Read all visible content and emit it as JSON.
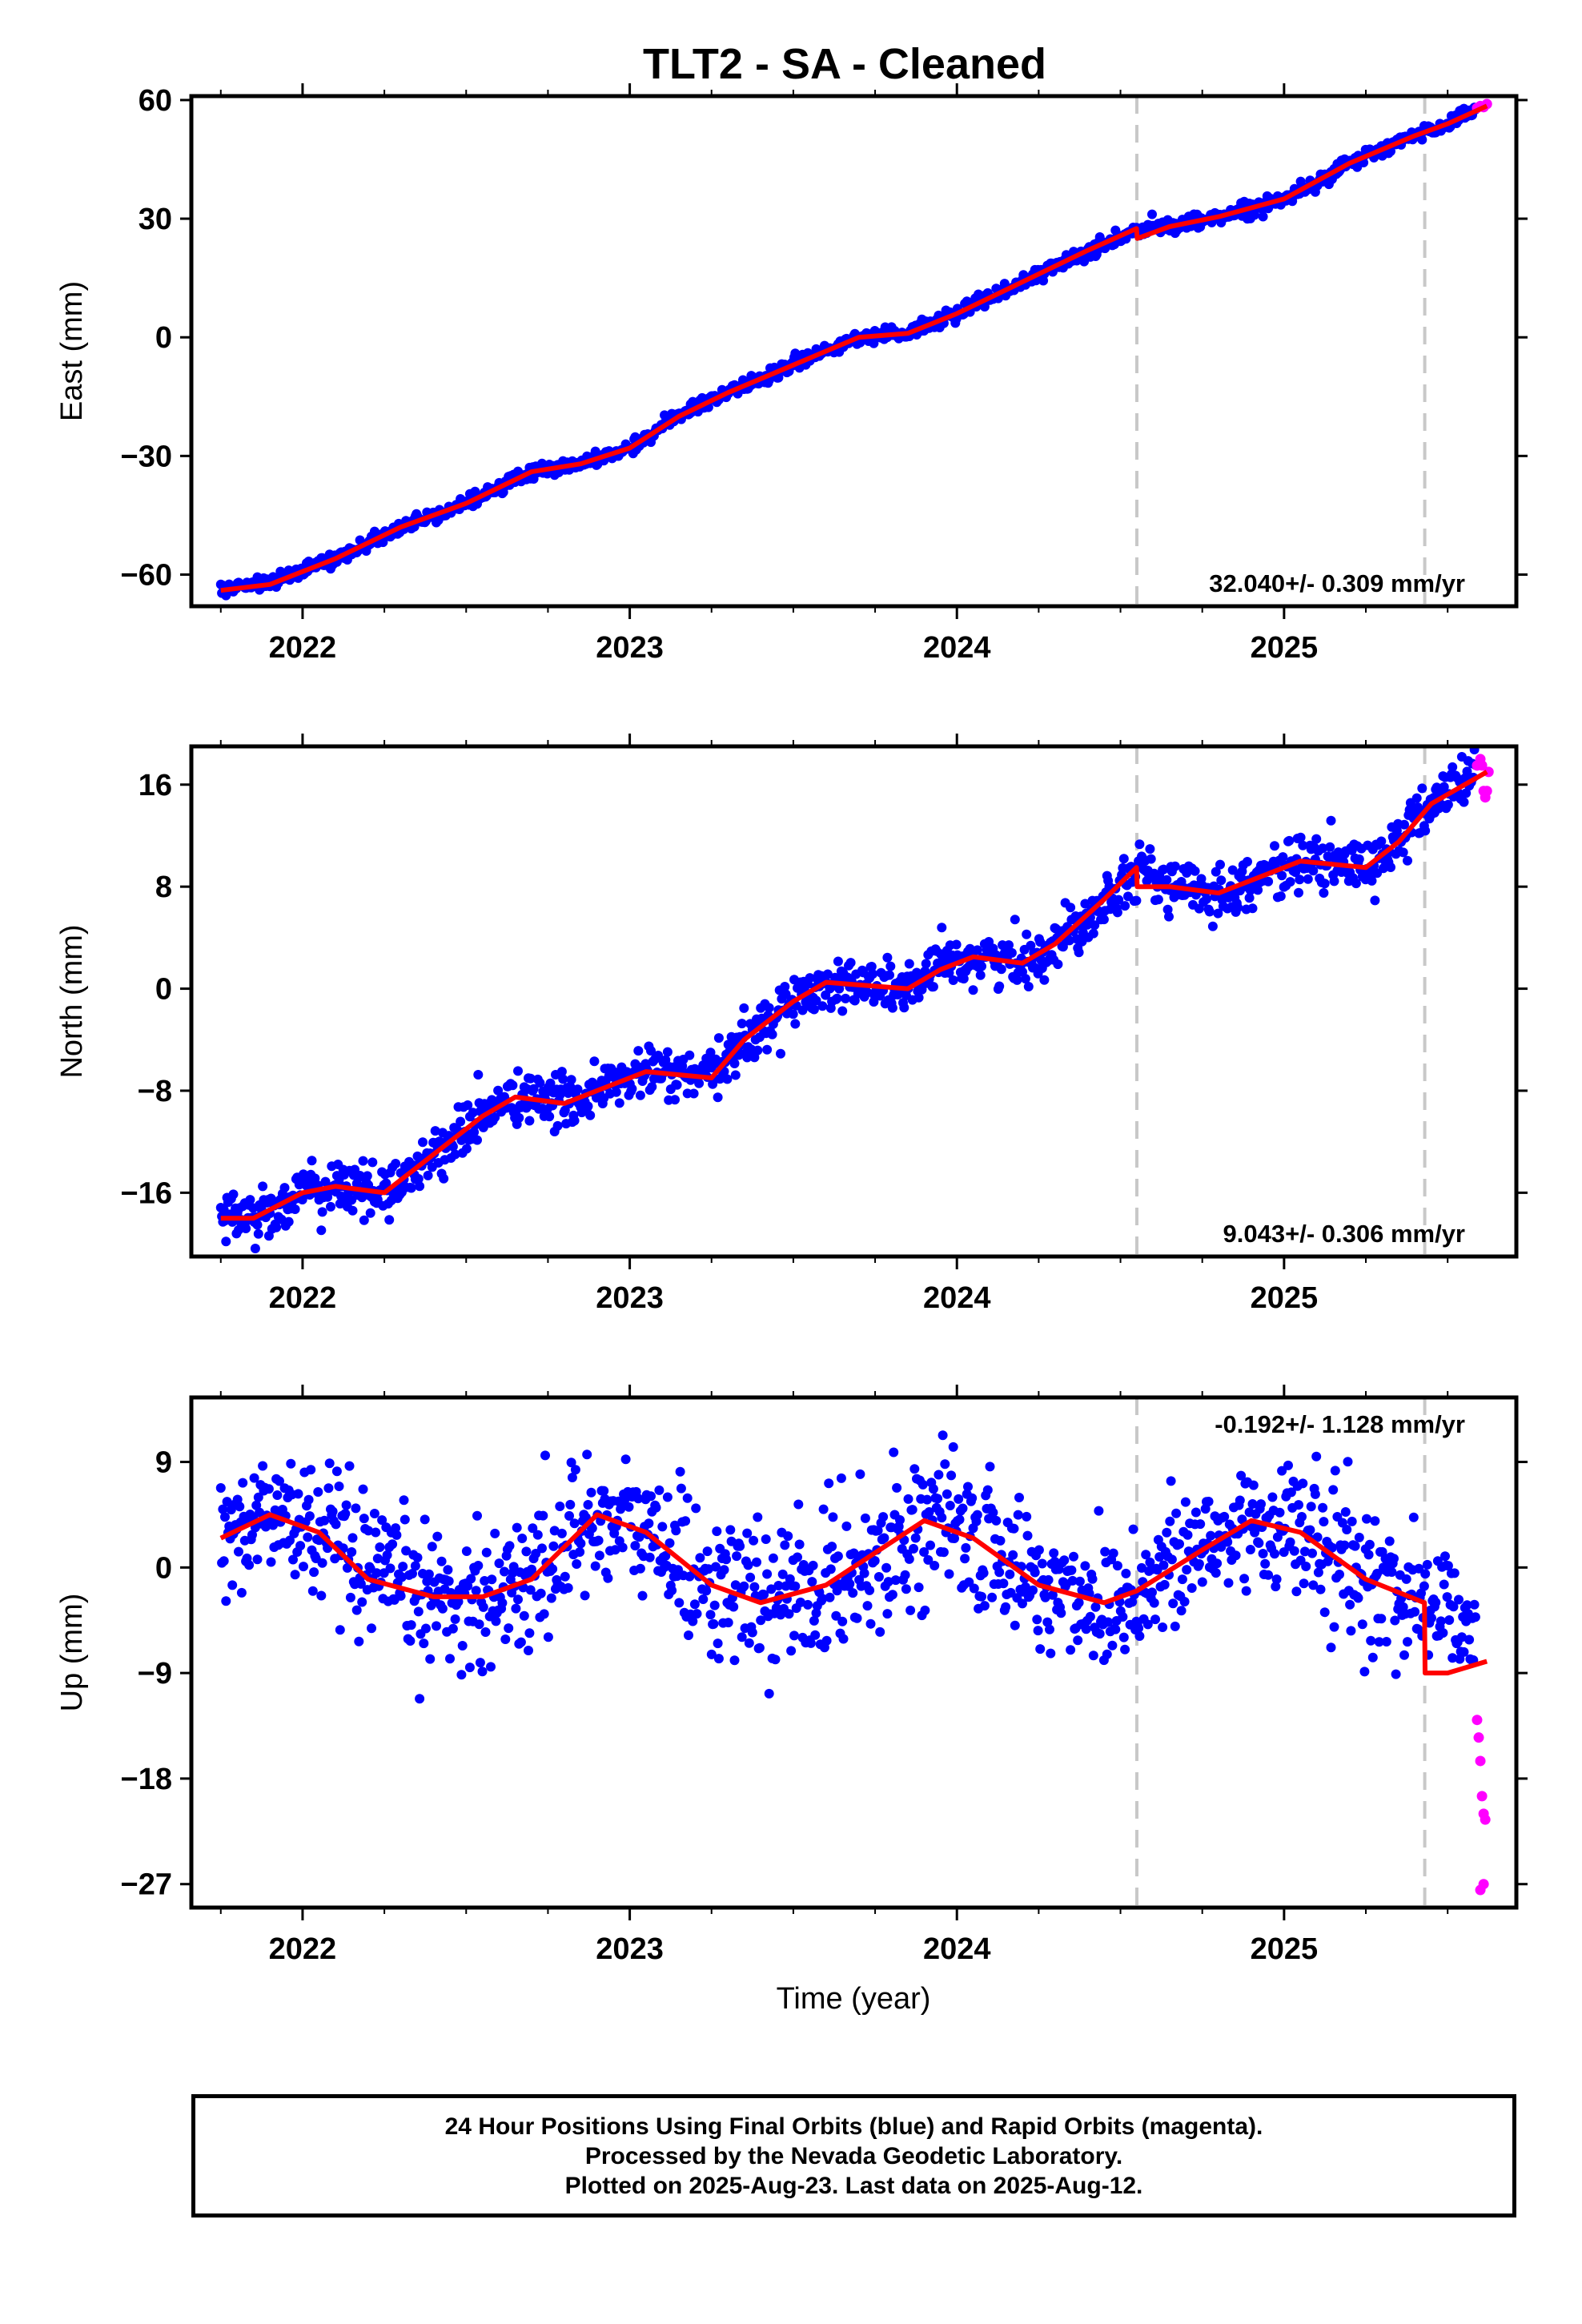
{
  "chart_data": {
    "type": "scatter",
    "title": "TLT2  - SA - Cleaned",
    "xlabel": "Time (year)",
    "xlim": [
      2021.66,
      2025.71
    ],
    "x_ticks": [
      2022,
      2023,
      2024,
      2025
    ],
    "x_tick_labels": [
      "2022",
      "2023",
      "2024",
      "2025"
    ],
    "discontinuities": [
      2024.55,
      2025.43
    ],
    "last_final_orbit_date": 2025.585,
    "panels": [
      {
        "name": "east",
        "ylabel": "East (mm)",
        "ylim": [
          -68,
          61
        ],
        "y_ticks": [
          -60,
          -30,
          0,
          30,
          60
        ],
        "y_tick_labels": [
          "−60",
          "−30",
          "0",
          "30",
          "60"
        ],
        "rate_label": "32.040+/- 0.309 mm/yr",
        "rate_position": "bottom-right",
        "series": {
          "final_orbits": {
            "color": "#0000ff",
            "noise_mm": 0.9,
            "points": [
              [
                2021.75,
                -63.8
              ],
              [
                2021.9,
                -62
              ],
              [
                2022.1,
                -56
              ],
              [
                2022.3,
                -48
              ],
              [
                2022.5,
                -42
              ],
              [
                2022.7,
                -34
              ],
              [
                2022.85,
                -32
              ],
              [
                2023.0,
                -28
              ],
              [
                2023.15,
                -20
              ],
              [
                2023.3,
                -14
              ],
              [
                2023.5,
                -7
              ],
              [
                2023.7,
                0
              ],
              [
                2023.85,
                1
              ],
              [
                2024.0,
                6
              ],
              [
                2024.2,
                14
              ],
              [
                2024.4,
                22
              ],
              [
                2024.55,
                27
              ],
              [
                2024.65,
                28
              ],
              [
                2024.8,
                30.5
              ],
              [
                2025.0,
                35
              ],
              [
                2025.2,
                44
              ],
              [
                2025.4,
                51
              ],
              [
                2025.5,
                54
              ],
              [
                2025.585,
                58
              ]
            ]
          },
          "rapid_orbits": {
            "color": "#ff00ff",
            "points": [
              [
                2025.59,
                58
              ],
              [
                2025.6,
                58.5
              ],
              [
                2025.61,
                58.2
              ],
              [
                2025.62,
                59
              ]
            ]
          },
          "model_fit": {
            "color": "#ff0000",
            "points": [
              [
                2021.75,
                -64
              ],
              [
                2021.9,
                -62.5
              ],
              [
                2022.1,
                -56
              ],
              [
                2022.3,
                -48
              ],
              [
                2022.5,
                -42
              ],
              [
                2022.7,
                -34
              ],
              [
                2022.85,
                -32
              ],
              [
                2023.0,
                -28
              ],
              [
                2023.15,
                -20
              ],
              [
                2023.3,
                -14
              ],
              [
                2023.5,
                -7
              ],
              [
                2023.7,
                0
              ],
              [
                2023.85,
                1
              ],
              [
                2024.0,
                6
              ],
              [
                2024.2,
                14
              ],
              [
                2024.4,
                22
              ],
              [
                2024.549,
                27.5
              ],
              [
                2024.551,
                25
              ],
              [
                2024.65,
                28
              ],
              [
                2024.8,
                30.5
              ],
              [
                2025.0,
                35
              ],
              [
                2025.2,
                44
              ],
              [
                2025.4,
                51
              ],
              [
                2025.5,
                54
              ],
              [
                2025.62,
                58.5
              ]
            ]
          }
        }
      },
      {
        "name": "north",
        "ylabel": "North (mm)",
        "ylim": [
          -21,
          19
        ],
        "y_ticks": [
          -16,
          -8,
          0,
          8,
          16
        ],
        "y_tick_labels": [
          "−16",
          "−8",
          "0",
          "8",
          "16"
        ],
        "rate_label": "9.043+/- 0.306 mm/yr",
        "rate_position": "bottom-right",
        "series": {
          "final_orbits": {
            "color": "#0000ff",
            "noise_mm": 1.0,
            "points": [
              [
                2021.75,
                -17.5
              ],
              [
                2021.85,
                -18
              ],
              [
                2022.0,
                -16
              ],
              [
                2022.1,
                -15.5
              ],
              [
                2022.25,
                -16
              ],
              [
                2022.4,
                -13
              ],
              [
                2022.55,
                -10
              ],
              [
                2022.65,
                -8.5
              ],
              [
                2022.8,
                -9
              ],
              [
                2022.95,
                -7.5
              ],
              [
                2023.05,
                -6.5
              ],
              [
                2023.25,
                -7
              ],
              [
                2023.35,
                -4
              ],
              [
                2023.5,
                -1
              ],
              [
                2023.6,
                0.5
              ],
              [
                2023.85,
                0
              ],
              [
                2023.95,
                1.5
              ],
              [
                2024.05,
                2.5
              ],
              [
                2024.2,
                2
              ],
              [
                2024.3,
                3.5
              ],
              [
                2024.45,
                7
              ],
              [
                2024.55,
                9.5
              ],
              [
                2024.65,
                8
              ],
              [
                2024.8,
                7.5
              ],
              [
                2024.95,
                9
              ],
              [
                2025.05,
                10
              ],
              [
                2025.25,
                9.5
              ],
              [
                2025.35,
                11.5
              ],
              [
                2025.45,
                14.5
              ],
              [
                2025.585,
                17
              ]
            ]
          },
          "rapid_orbits": {
            "color": "#ff00ff",
            "points": [
              [
                2025.59,
                17.5
              ],
              [
                2025.6,
                18
              ],
              [
                2025.605,
                17.5
              ],
              [
                2025.61,
                15.5
              ],
              [
                2025.615,
                15
              ],
              [
                2025.62,
                15.5
              ],
              [
                2025.625,
                17
              ]
            ]
          },
          "model_fit": {
            "color": "#ff0000",
            "points": [
              [
                2021.75,
                -18
              ],
              [
                2021.85,
                -18
              ],
              [
                2022.0,
                -16
              ],
              [
                2022.1,
                -15.5
              ],
              [
                2022.25,
                -16
              ],
              [
                2022.4,
                -13
              ],
              [
                2022.55,
                -10
              ],
              [
                2022.65,
                -8.5
              ],
              [
                2022.8,
                -9
              ],
              [
                2022.95,
                -7.5
              ],
              [
                2023.05,
                -6.5
              ],
              [
                2023.25,
                -7
              ],
              [
                2023.35,
                -4
              ],
              [
                2023.5,
                -1
              ],
              [
                2023.6,
                0.5
              ],
              [
                2023.85,
                0
              ],
              [
                2023.95,
                1.5
              ],
              [
                2024.05,
                2.5
              ],
              [
                2024.2,
                2
              ],
              [
                2024.3,
                3.5
              ],
              [
                2024.45,
                7
              ],
              [
                2024.549,
                9.5
              ],
              [
                2024.551,
                8
              ],
              [
                2024.65,
                8
              ],
              [
                2024.8,
                7.5
              ],
              [
                2024.95,
                9
              ],
              [
                2025.05,
                10
              ],
              [
                2025.25,
                9.5
              ],
              [
                2025.35,
                11.5
              ],
              [
                2025.45,
                14.5
              ],
              [
                2025.62,
                17
              ]
            ]
          }
        }
      },
      {
        "name": "up",
        "ylabel": "Up (mm)",
        "ylim": [
          -29,
          14.5
        ],
        "y_ticks": [
          -27,
          -18,
          -9,
          0,
          9
        ],
        "y_tick_labels": [
          "−27",
          "−18",
          "−9",
          "0",
          "9"
        ],
        "rate_label": "-0.192+/- 1.128 mm/yr",
        "rate_position": "top-right",
        "series": {
          "final_orbits": {
            "color": "#0000ff",
            "noise_mm": 3.0,
            "points": [
              [
                2021.75,
                2.5
              ],
              [
                2021.9,
                4.5
              ],
              [
                2022.05,
                3
              ],
              [
                2022.2,
                -1
              ],
              [
                2022.4,
                -2.5
              ],
              [
                2022.55,
                -2.5
              ],
              [
                2022.7,
                -1
              ],
              [
                2022.9,
                4.5
              ],
              [
                2023.05,
                3
              ],
              [
                2023.25,
                -1.5
              ],
              [
                2023.4,
                -3
              ],
              [
                2023.6,
                -1.5
              ],
              [
                2023.9,
                4
              ],
              [
                2024.05,
                2.5
              ],
              [
                2024.25,
                -1.5
              ],
              [
                2024.45,
                -3
              ],
              [
                2024.55,
                -2
              ],
              [
                2024.75,
                1.5
              ],
              [
                2024.9,
                4
              ],
              [
                2025.05,
                3
              ],
              [
                2025.25,
                -1
              ],
              [
                2025.43,
                -3
              ],
              [
                2025.585,
                -4
              ]
            ]
          },
          "rapid_orbits": {
            "color": "#ff00ff",
            "points": [
              [
                2025.59,
                -13
              ],
              [
                2025.595,
                -14.5
              ],
              [
                2025.6,
                -16.5
              ],
              [
                2025.605,
                -19.5
              ],
              [
                2025.61,
                -21
              ],
              [
                2025.615,
                -21.5
              ],
              [
                2025.6,
                -27.5
              ],
              [
                2025.61,
                -27
              ]
            ]
          },
          "model_fit": {
            "color": "#ff0000",
            "points": [
              [
                2021.75,
                2.5
              ],
              [
                2021.9,
                4.5
              ],
              [
                2022.05,
                3
              ],
              [
                2022.2,
                -1
              ],
              [
                2022.4,
                -2.5
              ],
              [
                2022.55,
                -2.5
              ],
              [
                2022.7,
                -1
              ],
              [
                2022.9,
                4.5
              ],
              [
                2023.05,
                3
              ],
              [
                2023.25,
                -1.5
              ],
              [
                2023.4,
                -3
              ],
              [
                2023.6,
                -1.5
              ],
              [
                2023.9,
                4
              ],
              [
                2024.05,
                2.5
              ],
              [
                2024.25,
                -1.5
              ],
              [
                2024.45,
                -3
              ],
              [
                2024.55,
                -2
              ],
              [
                2024.75,
                1.5
              ],
              [
                2024.9,
                4
              ],
              [
                2025.05,
                3
              ],
              [
                2025.25,
                -1
              ],
              [
                2025.429,
                -3
              ],
              [
                2025.431,
                -9
              ],
              [
                2025.5,
                -9
              ],
              [
                2025.62,
                -8
              ]
            ]
          }
        }
      }
    ]
  },
  "footer": {
    "line1": "24 Hour Positions Using Final Orbits (blue) and Rapid Orbits (magenta).",
    "line2": "Processed by the Nevada Geodetic Laboratory.",
    "line3": "Plotted on 2025-Aug-23. Last data on 2025-Aug-12."
  }
}
